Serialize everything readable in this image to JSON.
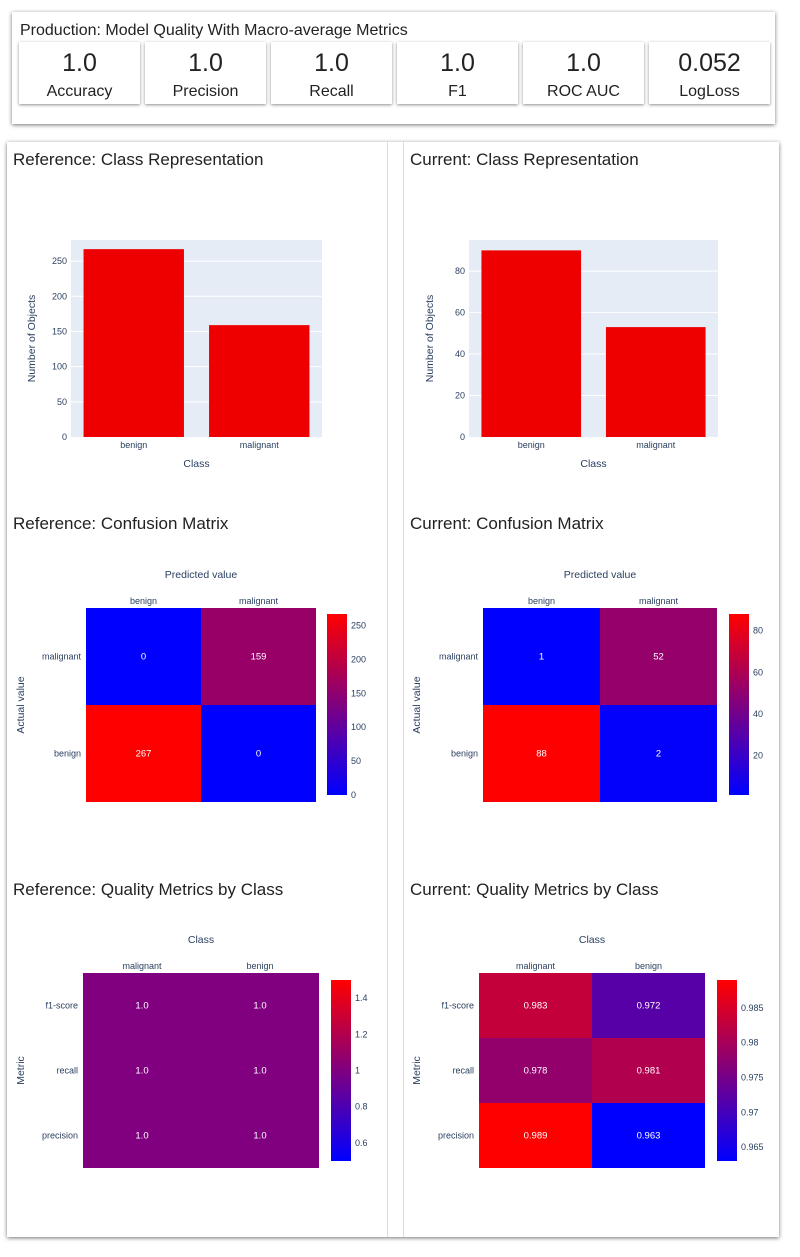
{
  "header": {
    "title": "Production: Model Quality With Macro-average Metrics",
    "metrics": [
      {
        "value": "1.0",
        "label": "Accuracy"
      },
      {
        "value": "1.0",
        "label": "Precision"
      },
      {
        "value": "1.0",
        "label": "Recall"
      },
      {
        "value": "1.0",
        "label": "F1"
      },
      {
        "value": "1.0",
        "label": "ROC AUC"
      },
      {
        "value": "0.052",
        "label": "LogLoss"
      }
    ]
  },
  "panels": {
    "ref_class_title": "Reference: Class Representation",
    "cur_class_title": "Current: Class Representation",
    "ref_cm_title": "Reference: Confusion Matrix",
    "cur_cm_title": "Current: Confusion Matrix",
    "ref_qm_title": "Reference: Quality Metrics by Class",
    "cur_qm_title": "Current: Quality Metrics by Class"
  },
  "colors": {
    "bar": "#ee0000",
    "plot_bg": "#e5ecf6",
    "scale_low": "#0000ff",
    "scale_high": "#ff0000",
    "text": "#2a3f5f"
  },
  "chart_data": [
    {
      "id": "ref_class",
      "type": "bar",
      "categories": [
        "benign",
        "malignant"
      ],
      "values": [
        267,
        159
      ],
      "xlabel": "Class",
      "ylabel": "Number of Objects",
      "ylim": [
        0,
        280
      ],
      "yticks": [
        0,
        50,
        100,
        150,
        200,
        250
      ]
    },
    {
      "id": "cur_class",
      "type": "bar",
      "categories": [
        "benign",
        "malignant"
      ],
      "values": [
        90,
        53
      ],
      "xlabel": "Class",
      "ylabel": "Number of Objects",
      "ylim": [
        0,
        95
      ],
      "yticks": [
        0,
        20,
        40,
        60,
        80
      ]
    },
    {
      "id": "ref_cm",
      "type": "heatmap",
      "title": "Predicted value",
      "ylabel": "Actual value",
      "x": [
        "benign",
        "malignant"
      ],
      "y": [
        "malignant",
        "benign"
      ],
      "z": [
        [
          0,
          159
        ],
        [
          267,
          0
        ]
      ],
      "cell_labels": [
        [
          "0",
          "159"
        ],
        [
          "267",
          "0"
        ]
      ],
      "zmin": 0,
      "zmax": 267,
      "colorbar_ticks": [
        0,
        50,
        100,
        150,
        200,
        250
      ]
    },
    {
      "id": "cur_cm",
      "type": "heatmap",
      "title": "Predicted value",
      "ylabel": "Actual value",
      "x": [
        "benign",
        "malignant"
      ],
      "y": [
        "malignant",
        "benign"
      ],
      "z": [
        [
          1,
          52
        ],
        [
          88,
          2
        ]
      ],
      "cell_labels": [
        [
          "1",
          "52"
        ],
        [
          "88",
          "2"
        ]
      ],
      "zmin": 1,
      "zmax": 88,
      "colorbar_ticks": [
        20,
        40,
        60,
        80
      ]
    },
    {
      "id": "ref_qm",
      "type": "heatmap",
      "title": "Class",
      "ylabel": "Metric",
      "x": [
        "malignant",
        "benign"
      ],
      "y": [
        "f1-score",
        "recall",
        "precision"
      ],
      "z": [
        [
          1.0,
          1.0
        ],
        [
          1.0,
          1.0
        ],
        [
          1.0,
          1.0
        ]
      ],
      "cell_labels": [
        [
          "1.0",
          "1.0"
        ],
        [
          "1.0",
          "1.0"
        ],
        [
          "1.0",
          "1.0"
        ]
      ],
      "zmin": 0.5,
      "zmax": 1.5,
      "colorbar_ticks": [
        0.6,
        0.8,
        1,
        1.2,
        1.4
      ],
      "colorbar_tick_labels": [
        "0.6",
        "0.8",
        "1",
        "1.2",
        "1.4"
      ]
    },
    {
      "id": "cur_qm",
      "type": "heatmap",
      "title": "Class",
      "ylabel": "Metric",
      "x": [
        "malignant",
        "benign"
      ],
      "y": [
        "f1-score",
        "recall",
        "precision"
      ],
      "z": [
        [
          0.983,
          0.972
        ],
        [
          0.978,
          0.981
        ],
        [
          0.989,
          0.963
        ]
      ],
      "cell_labels": [
        [
          "0.983",
          "0.972"
        ],
        [
          "0.978",
          "0.981"
        ],
        [
          "0.989",
          "0.963"
        ]
      ],
      "zmin": 0.963,
      "zmax": 0.989,
      "colorbar_ticks": [
        0.965,
        0.97,
        0.975,
        0.98,
        0.985
      ],
      "colorbar_tick_labels": [
        "0.965",
        "0.97",
        "0.975",
        "0.98",
        "0.985"
      ]
    }
  ]
}
